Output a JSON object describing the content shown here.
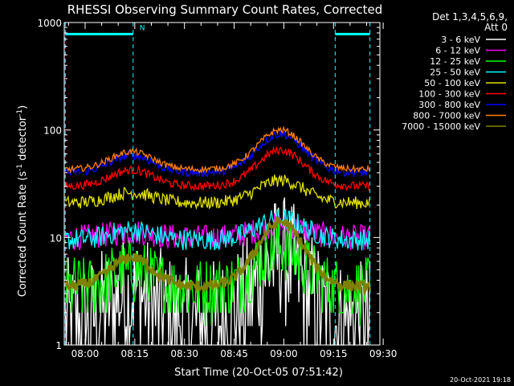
{
  "chart_data": {
    "type": "line",
    "title": "RHESSI Observing Summary Count Rates, Corrected",
    "xlabel": "Start Time (20-Oct-05 07:51:42)",
    "ylabel_main": "Corrected Count Rate (s",
    "ylabel_exp1": "-1",
    "ylabel_mid": " detector",
    "ylabel_exp2": "-1",
    "ylabel_end": ")",
    "y_scale": "log",
    "ylim": [
      1,
      1000
    ],
    "xlim_minutes": [
      473.7,
      569.0
    ],
    "x_ticks": [
      {
        "label": "08:00",
        "m": 480
      },
      {
        "label": "08:15",
        "m": 495
      },
      {
        "label": "08:30",
        "m": 510
      },
      {
        "label": "08:45",
        "m": 525
      },
      {
        "label": "09:00",
        "m": 540
      },
      {
        "label": "09:15",
        "m": 555
      },
      {
        "label": "09:30",
        "m": 570
      }
    ],
    "y_ticks": [
      {
        "label": "1",
        "v": 1
      },
      {
        "label": "10",
        "v": 10
      },
      {
        "label": "100",
        "v": 100
      },
      {
        "label": "1000",
        "v": 1000
      }
    ],
    "legend_header_1": "Det 1,3,4,5,6,9,",
    "legend_header_2": "Att 0",
    "legend_position": "top-right",
    "series": [
      {
        "name": "3 - 6 keV",
        "color": "#ffffff",
        "base": 1.6,
        "peak": 6.5,
        "noise": 0.6,
        "step": true
      },
      {
        "name": "6 - 12 keV",
        "color": "#ff00ff",
        "base": 10,
        "peak": 13,
        "noise": 0.12
      },
      {
        "name": "12 - 25 keV",
        "color": "#00ff00",
        "base": 3.3,
        "peak": 8,
        "noise": 0.3,
        "step": true
      },
      {
        "name": "25 - 50 keV",
        "color": "#00ffff",
        "base": 9.5,
        "peak": 15,
        "noise": 0.1
      },
      {
        "name": "50 - 100 keV",
        "color": "#e0e000",
        "base": 21,
        "peak": 34,
        "noise": 0.06
      },
      {
        "name": "100 - 300 keV",
        "color": "#ff0000",
        "base": 30,
        "peak": 65,
        "noise": 0.04
      },
      {
        "name": "300 - 800 keV",
        "color": "#0000ff",
        "base": 40,
        "peak": 92,
        "noise": 0.04
      },
      {
        "name": "800 - 7000 keV",
        "color": "#ff8000",
        "base": 43,
        "peak": 100,
        "noise": 0.03
      },
      {
        "name": "7000 - 15000 keV",
        "color": "#808000",
        "base": 3.5,
        "peak": 14,
        "noise": 0.05,
        "thick": true
      }
    ],
    "data_start_m": 474.0,
    "data_end_m": 566.0,
    "bump1_center_m": 494.0,
    "bump2_center_m": 539.0,
    "night_intervals": [
      {
        "label": "N",
        "start_m": 474.0,
        "end_m": 494.5
      },
      {
        "label": "",
        "start_m": 555.5,
        "end_m": 566.0
      }
    ],
    "night_level": 780,
    "grid": false
  },
  "footer": {
    "timestamp": "20-Oct-2021 19:18"
  }
}
